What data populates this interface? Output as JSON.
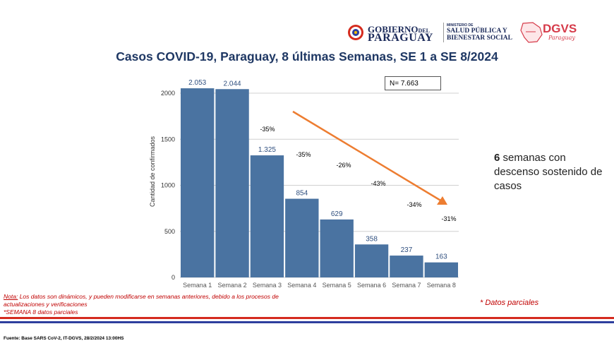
{
  "header": {
    "gob_line1": "GOBIERNO",
    "gob_line1_small": "DEL",
    "gob_line2": "PARAGUAY",
    "ministerio_small": "MINISTERIO DE",
    "ministerio_line1": "SALUD PÚBLICA Y",
    "ministerio_line2": "BIENESTAR SOCIAL",
    "dgvs": "DGVS",
    "dgvs_sub": "Paraguay"
  },
  "n_label": "N= 7.663",
  "side_note": {
    "bold": "6",
    "rest": " semanas con descenso sostenido de casos"
  },
  "nota": {
    "label": "Nota:",
    "text": " Los datos son dinámicos, y pueden modificarse en semanas anteriores, debido a los procesos de actualizaciones y verificaciones",
    "line2": "*SEMANA 8 datos parciales"
  },
  "parciales": "* Datos parciales",
  "fuente": "Fuente: Base SARS CoV-2, IT-DGVS, 28/2/2024 13:00HS",
  "colors": {
    "bar": "#4a73a1",
    "arrow": "#ed7d31",
    "title": "#1f3864",
    "stripe_red": "#d52b1e",
    "stripe_blue": "#2e3f9e"
  },
  "chart_data": {
    "type": "bar",
    "title": "Casos COVID-19, Paraguay, 8 últimas Semanas, SE 1 a SE 8/2024",
    "ylabel": "Cantidad de confirmados",
    "xlabel": "",
    "categories": [
      "Semana 1",
      "Semana 2",
      "Semana 3",
      "Semana 4",
      "Semana 5",
      "Semana 6",
      "Semana 7",
      "Semana 8"
    ],
    "values": [
      2053,
      2044,
      1325,
      854,
      629,
      358,
      237,
      163
    ],
    "value_labels": [
      "2.053",
      "2.044",
      "1.325",
      "854",
      "629",
      "358",
      "237",
      "163"
    ],
    "ylim": [
      0,
      2000
    ],
    "yticks": [
      0,
      500,
      1000,
      1500,
      2000
    ],
    "grid": true,
    "pct_changes": [
      "-35%",
      "-35%",
      "-26%",
      "-43%",
      "-34%",
      "-31%"
    ],
    "trend_arrow": "descending"
  }
}
